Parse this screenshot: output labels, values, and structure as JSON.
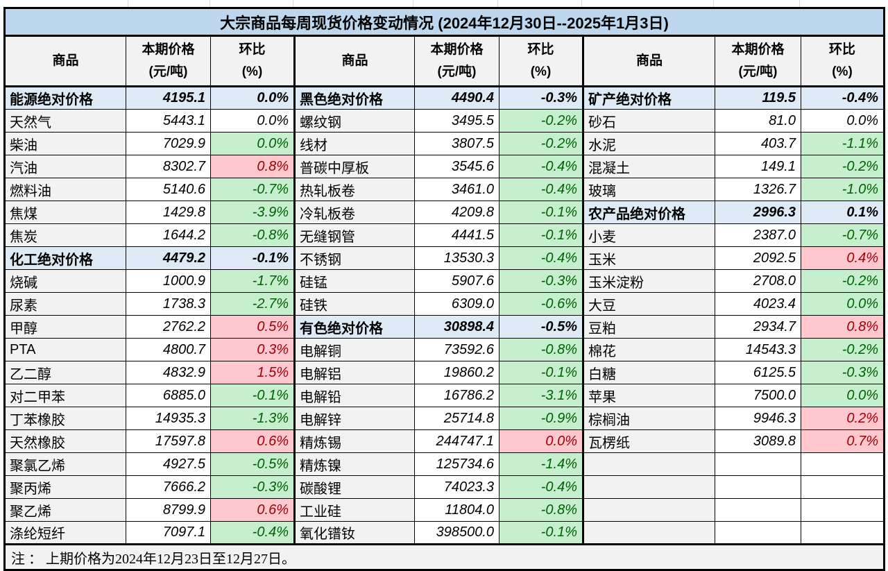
{
  "title": "大宗商品每周现货价格变动情况 (2024年12月30日--2025年1月3日)",
  "columns": {
    "name": "商品",
    "price_l1": "本期价格",
    "price_l2": "(元/吨)",
    "pct_l1": "环比",
    "pct_l2": "(%)"
  },
  "note": "注 ： 上期价格为2024年12月23日至12月27日。",
  "colors": {
    "title_bg": "#BDD7EE",
    "category_bg": "#DEEBF7",
    "header_bg": "#F2F2F2",
    "label_bg": "#F2F2F2",
    "note_bg": "#F2F2F2",
    "up_bg": "#FFC7CE",
    "up_text": "#9C0006",
    "down_bg": "#C6EFCE",
    "down_text": "#006100",
    "gridline": "#D9D9D9",
    "border": "#000000"
  },
  "groups": [
    {
      "rows": [
        {
          "name": "能源绝对价格",
          "price": "4195.1",
          "pct": "0.0%",
          "style": "category"
        },
        {
          "name": "天然气",
          "price": "5443.1",
          "pct": "0.0%",
          "style": "plain"
        },
        {
          "name": "柴油",
          "price": "7029.9",
          "pct": "0.0%",
          "style": "down"
        },
        {
          "name": "汽油",
          "price": "8302.7",
          "pct": "0.8%",
          "style": "up"
        },
        {
          "name": "燃料油",
          "price": "5140.6",
          "pct": "-0.7%",
          "style": "down"
        },
        {
          "name": "焦煤",
          "price": "1429.8",
          "pct": "-3.9%",
          "style": "down"
        },
        {
          "name": "焦炭",
          "price": "1644.2",
          "pct": "-0.8%",
          "style": "down"
        },
        {
          "name": "化工绝对价格",
          "price": "4479.2",
          "pct": "-0.1%",
          "style": "category"
        },
        {
          "name": "烧碱",
          "price": "1000.9",
          "pct": "-1.7%",
          "style": "down"
        },
        {
          "name": "尿素",
          "price": "1738.3",
          "pct": "-2.7%",
          "style": "down"
        },
        {
          "name": "甲醇",
          "price": "2762.2",
          "pct": "0.5%",
          "style": "up"
        },
        {
          "name": "PTA",
          "price": "4800.7",
          "pct": "0.3%",
          "style": "up"
        },
        {
          "name": "乙二醇",
          "price": "4832.9",
          "pct": "1.5%",
          "style": "up"
        },
        {
          "name": "对二甲苯",
          "price": "6885.0",
          "pct": "-0.1%",
          "style": "down"
        },
        {
          "name": "丁苯橡胶",
          "price": "14935.3",
          "pct": "-1.3%",
          "style": "down"
        },
        {
          "name": "天然橡胶",
          "price": "17597.8",
          "pct": "0.6%",
          "style": "up"
        },
        {
          "name": "聚氯乙烯",
          "price": "4927.5",
          "pct": "-0.5%",
          "style": "down"
        },
        {
          "name": "聚丙烯",
          "price": "7666.2",
          "pct": "-0.3%",
          "style": "down"
        },
        {
          "name": "聚乙烯",
          "price": "8799.9",
          "pct": "0.6%",
          "style": "up"
        },
        {
          "name": "涤纶短纤",
          "price": "7097.1",
          "pct": "-0.4%",
          "style": "down"
        }
      ]
    },
    {
      "rows": [
        {
          "name": "黑色绝对价格",
          "price": "4490.4",
          "pct": "-0.3%",
          "style": "category"
        },
        {
          "name": "螺纹钢",
          "price": "3495.5",
          "pct": "-0.2%",
          "style": "down"
        },
        {
          "name": "线材",
          "price": "3807.5",
          "pct": "-0.2%",
          "style": "down"
        },
        {
          "name": "普碳中厚板",
          "price": "3545.6",
          "pct": "-0.4%",
          "style": "down"
        },
        {
          "name": "热轧板卷",
          "price": "3461.0",
          "pct": "-0.4%",
          "style": "down"
        },
        {
          "name": "冷轧板卷",
          "price": "4209.8",
          "pct": "-0.1%",
          "style": "down"
        },
        {
          "name": "无缝钢管",
          "price": "4441.5",
          "pct": "-0.1%",
          "style": "down"
        },
        {
          "name": "不锈钢",
          "price": "13530.3",
          "pct": "-0.4%",
          "style": "down"
        },
        {
          "name": "硅锰",
          "price": "5907.6",
          "pct": "-0.3%",
          "style": "down"
        },
        {
          "name": "硅铁",
          "price": "6309.0",
          "pct": "-0.6%",
          "style": "down"
        },
        {
          "name": "有色绝对价格",
          "price": "30898.4",
          "pct": "-0.5%",
          "style": "category"
        },
        {
          "name": "电解铜",
          "price": "73592.6",
          "pct": "-0.8%",
          "style": "down"
        },
        {
          "name": "电解铝",
          "price": "19860.2",
          "pct": "-0.1%",
          "style": "down"
        },
        {
          "name": "电解铅",
          "price": "16786.2",
          "pct": "-3.1%",
          "style": "down"
        },
        {
          "name": "电解锌",
          "price": "25714.8",
          "pct": "-0.9%",
          "style": "down"
        },
        {
          "name": "精炼锡",
          "price": "244747.1",
          "pct": "0.0%",
          "style": "up"
        },
        {
          "name": "精炼镍",
          "price": "125734.6",
          "pct": "-1.4%",
          "style": "down"
        },
        {
          "name": "碳酸锂",
          "price": "74023.3",
          "pct": "-0.4%",
          "style": "down"
        },
        {
          "name": "工业硅",
          "price": "11804.0",
          "pct": "-0.8%",
          "style": "down"
        },
        {
          "name": "氧化镨钕",
          "price": "398500.0",
          "pct": "-0.1%",
          "style": "down"
        }
      ]
    },
    {
      "rows": [
        {
          "name": "矿产绝对价格",
          "price": "119.5",
          "pct": "-0.4%",
          "style": "category"
        },
        {
          "name": "砂石",
          "price": "81.0",
          "pct": "0.0%",
          "style": "plain"
        },
        {
          "name": "水泥",
          "price": "403.7",
          "pct": "-1.1%",
          "style": "down"
        },
        {
          "name": "混凝土",
          "price": "149.1",
          "pct": "-0.2%",
          "style": "down"
        },
        {
          "name": "玻璃",
          "price": "1326.7",
          "pct": "-1.0%",
          "style": "down"
        },
        {
          "name": "农产品绝对价格",
          "price": "2996.3",
          "pct": "0.1%",
          "style": "category"
        },
        {
          "name": "小麦",
          "price": "2387.0",
          "pct": "-0.7%",
          "style": "down"
        },
        {
          "name": "玉米",
          "price": "2092.5",
          "pct": "0.4%",
          "style": "up"
        },
        {
          "name": "玉米淀粉",
          "price": "2708.0",
          "pct": "-0.2%",
          "style": "down"
        },
        {
          "name": "大豆",
          "price": "4023.4",
          "pct": "0.0%",
          "style": "down"
        },
        {
          "name": "豆粕",
          "price": "2934.7",
          "pct": "0.8%",
          "style": "up"
        },
        {
          "name": "棉花",
          "price": "14543.3",
          "pct": "-0.2%",
          "style": "down"
        },
        {
          "name": "白糖",
          "price": "6125.5",
          "pct": "-0.3%",
          "style": "down"
        },
        {
          "name": "苹果",
          "price": "7500.0",
          "pct": "0.0%",
          "style": "down"
        },
        {
          "name": "棕榈油",
          "price": "9946.3",
          "pct": "0.2%",
          "style": "up"
        },
        {
          "name": "瓦楞纸",
          "price": "3089.8",
          "pct": "0.7%",
          "style": "up"
        },
        {
          "name": "",
          "price": "",
          "pct": "",
          "style": "empty"
        },
        {
          "name": "",
          "price": "",
          "pct": "",
          "style": "empty"
        },
        {
          "name": "",
          "price": "",
          "pct": "",
          "style": "empty"
        },
        {
          "name": "",
          "price": "",
          "pct": "",
          "style": "empty"
        }
      ]
    }
  ]
}
